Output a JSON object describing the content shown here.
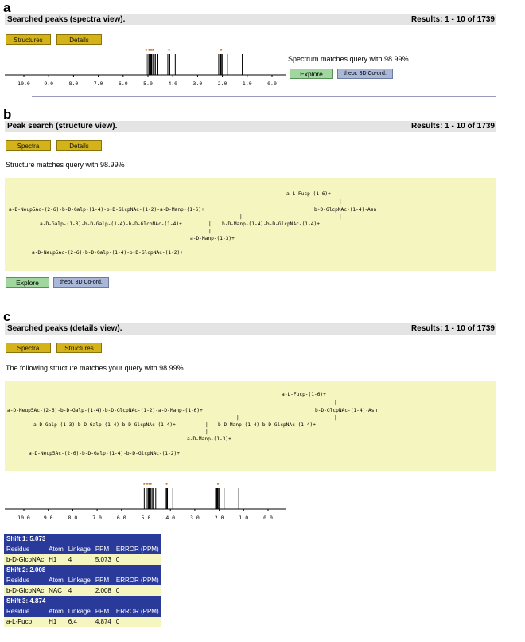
{
  "panels": [
    {
      "letter": "a"
    },
    {
      "letter": "b"
    },
    {
      "letter": "c"
    }
  ],
  "a": {
    "title": "Searched peaks (spectra view).",
    "results": "Results: 1 - 10 of 1739",
    "btn_structures": "Structures",
    "btn_details": "Details",
    "match_text": "Spectrum matches query with 98.99%",
    "btn_explore": "Explore",
    "btn_3d": "theor. 3D Co-ord."
  },
  "b": {
    "title": "Peak search (structure view).",
    "results": "Results: 1 - 10 of 1739",
    "btn_spectra": "Spectra",
    "btn_details": "Details",
    "match_text": "Structure matches query with 98.99%",
    "btn_explore": "Explore",
    "btn_3d": "theor. 3D Co-ord."
  },
  "c": {
    "title": "Searched peaks (details view).",
    "results": "Results: 1 - 10 of 1739",
    "btn_spectra": "Spectra",
    "btn_structures": "Structures",
    "match_text": "The following structure matches your query with 98.99%"
  },
  "structure_lines": [
    "a-L-Fucp-(1-6)+",
    "|",
    "a-D-Neup5Ac-(2-6)-b-D-Galp-(1-4)-b-D-GlcpNAc-(1-2)-a-D-Manp-(1-6)+",
    "b-D-GlcpNAc-(1-4)-Asn",
    "|",
    "|",
    "a-D-Galp-(1-3)-b-D-Galp-(1-4)-b-D-GlcpNAc-(1-4)+",
    "b-D-Manp-(1-4)-b-D-GlcpNAc-(1-4)+",
    "|",
    "|",
    "a-D-Manp-(1-3)+",
    "a-D-Neup5Ac-(2-6)-b-D-Galp-(1-4)-b-D-GlcpNAc-(1-2)+"
  ],
  "axis_ticks": [
    "10.0",
    "9.0",
    "8.0",
    "7.0",
    "6.0",
    "5.0",
    "4.0",
    "3.0",
    "2.0",
    "1.0",
    "0.0"
  ],
  "peaks_ppm": [
    5.07,
    5.0,
    4.95,
    4.9,
    4.87,
    4.85,
    4.8,
    4.75,
    4.7,
    4.6,
    4.2,
    4.15,
    4.12,
    3.9,
    2.15,
    2.1,
    2.07,
    2.05,
    2.01,
    1.8,
    1.2
  ],
  "peak_marks_ppm": [
    5.07,
    4.95,
    4.87,
    4.8,
    4.15,
    2.05
  ],
  "shift_table": [
    {
      "header": "Shift 1:   5.073",
      "residue": "b-D-GlcpNAc",
      "atom": "H1",
      "linkage": "4",
      "ppm": "5.073",
      "error": "0"
    },
    {
      "header": "Shift 2:   2.008",
      "residue": "b-D-GlcpNAc",
      "atom": "NAC",
      "linkage": "4",
      "ppm": "2.008",
      "error": "0"
    },
    {
      "header": "Shift 3:   4.874",
      "residue": "a-L-Fucp",
      "atom": "H1",
      "linkage": "6,4",
      "ppm": "4.874",
      "error": "0"
    }
  ],
  "shift_columns": {
    "residue": "Residue",
    "atom": "Atom",
    "linkage": "Linkage",
    "ppm": "PPM",
    "error": "ERROR (PPM)"
  },
  "colors": {
    "header_bar": "#e4e4e4",
    "button_yellow": "#d4b21a",
    "explore_green": "#9fd79f",
    "coord_blue": "#a9b8d8",
    "structure_bg": "#f5f5c0",
    "table_header": "#2a3a9a"
  }
}
